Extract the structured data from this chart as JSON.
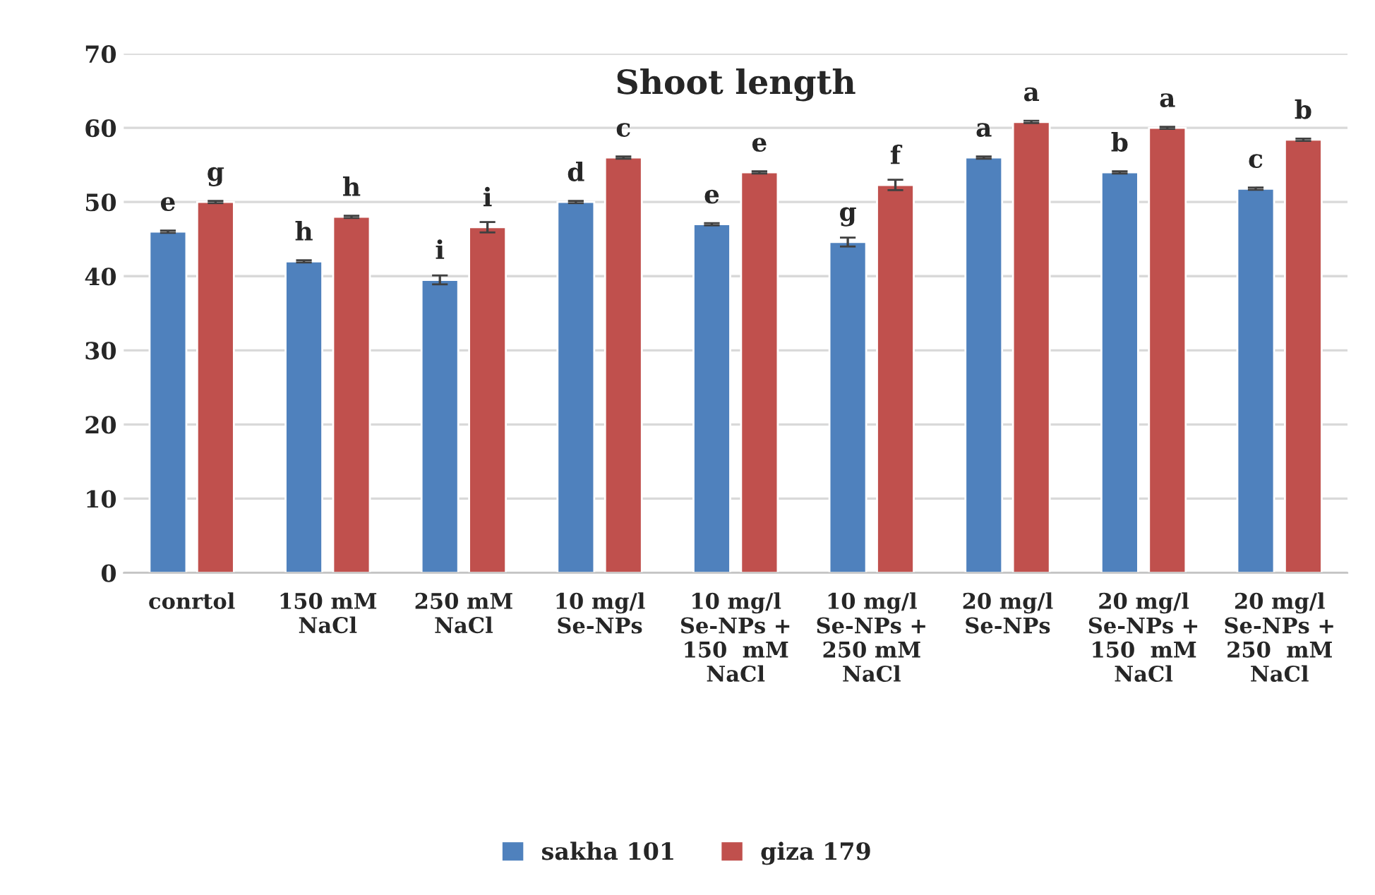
{
  "chart_data": {
    "type": "bar",
    "title": "Shoot length",
    "categories": [
      "conrtol",
      "150 mM\nNaCl",
      "250 mM\nNaCl",
      "10 mg/l\nSe-NPs",
      "10 mg/l\nSe-NPs +\n150  mM\nNaCl",
      "10 mg/l\nSe-NPs +\n250 mM\nNaCl",
      "20 mg/l\nSe-NPs",
      "20 mg/l\nSe-NPs +\n150  mM\nNaCl",
      "20 mg/l\nSe-NPs +\n250  mM\nNaCl"
    ],
    "series": [
      {
        "name": "sakha 101",
        "color": "#4f81bd",
        "values": [
          46,
          42,
          39.5,
          50,
          47,
          44.6,
          56,
          54,
          51.8
        ],
        "errors": [
          0.15,
          0.15,
          0.6,
          0.15,
          0.15,
          0.6,
          0.15,
          0.15,
          0.15
        ],
        "value_labels": [
          "e",
          "h",
          "i",
          "d",
          "e",
          "g",
          "a",
          "b",
          "c"
        ]
      },
      {
        "name": "giza 179",
        "color": "#c0504d",
        "values": [
          50,
          48,
          46.6,
          56,
          54,
          52.3,
          60.8,
          60,
          58.4
        ],
        "errors": [
          0.15,
          0.15,
          0.7,
          0.15,
          0.15,
          0.7,
          0.15,
          0.15,
          0.15
        ],
        "value_labels": [
          "g",
          "h",
          "i",
          "c",
          "e",
          "f",
          "a",
          "a",
          "b"
        ]
      }
    ],
    "ylim": [
      0,
      70
    ],
    "yticks": [
      0,
      10,
      20,
      30,
      40,
      50,
      60,
      70
    ],
    "grid": "y",
    "legend": "bottom"
  }
}
